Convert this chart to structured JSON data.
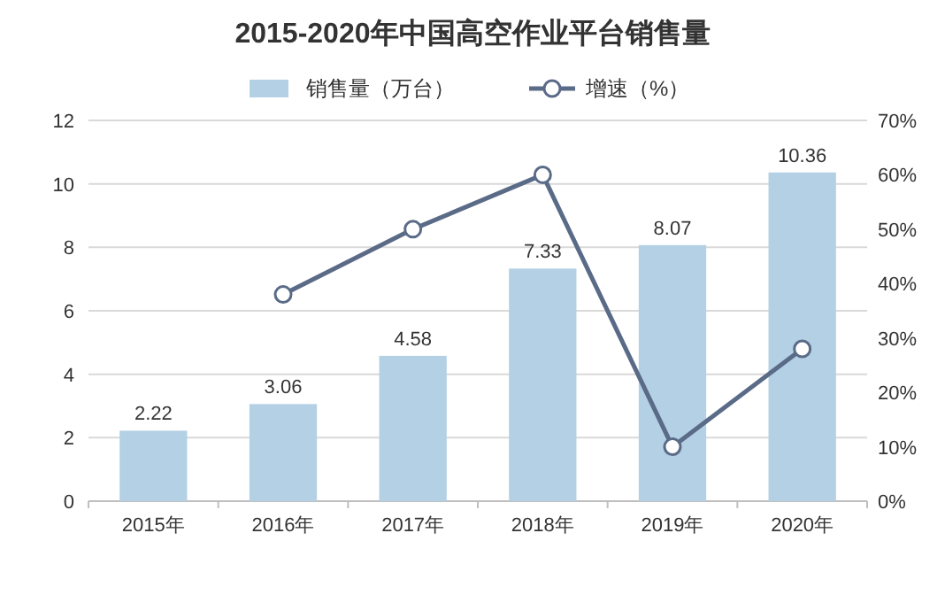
{
  "chart_data": {
    "type": "bar",
    "title": "2015-2020年中国高空作业平台销售量",
    "categories": [
      "2015年",
      "2016年",
      "2017年",
      "2018年",
      "2019年",
      "2020年"
    ],
    "series": [
      {
        "name": "销售量（万台）",
        "color": "#b4d0e4",
        "values": [
          2.22,
          3.06,
          4.58,
          7.33,
          8.07,
          10.36
        ],
        "value_labels": [
          "2.22",
          "3.06",
          "4.58",
          "7.33",
          "8.07",
          "10.36"
        ]
      },
      {
        "name": "增速（%）",
        "type": "line",
        "axis": "y2",
        "color": "#5a6b88",
        "marker": "circle",
        "values": [
          null,
          38,
          50,
          60,
          10,
          28
        ]
      }
    ],
    "ylim": [
      0,
      12
    ],
    "yticks": [
      0,
      2,
      4,
      6,
      8,
      10,
      12
    ],
    "y2lim": [
      0,
      70
    ],
    "y2ticks": [
      {
        "value": 0,
        "label": "0%"
      },
      {
        "value": 10,
        "label": "10%"
      },
      {
        "value": 20,
        "label": "20%"
      },
      {
        "value": 30,
        "label": "30%"
      },
      {
        "value": 40,
        "label": "40%"
      },
      {
        "value": 50,
        "label": "50%"
      },
      {
        "value": 60,
        "label": "60%"
      },
      {
        "value": 70,
        "label": "70%"
      }
    ],
    "grid": "y",
    "legend": "top"
  }
}
